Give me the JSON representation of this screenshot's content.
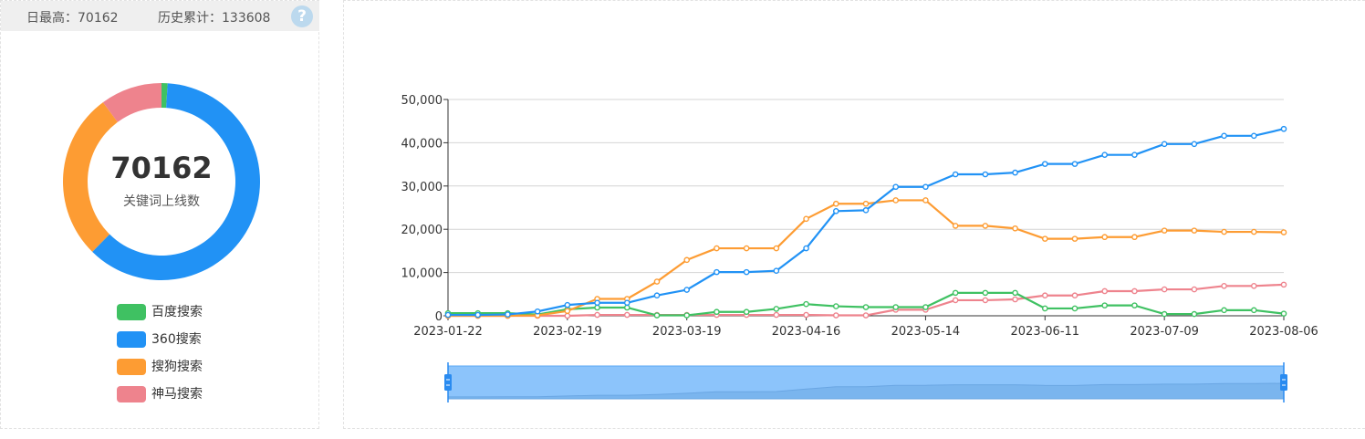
{
  "stats": {
    "daily_max_label": "日最高：",
    "daily_max_value": "70162",
    "total_label": "历史累计：",
    "total_value": "133608",
    "help_icon": "help-icon"
  },
  "donut": {
    "center_value": "70162",
    "center_label": "关键词上线数"
  },
  "legend": [
    {
      "label": "百度搜索",
      "color": "#3fc162"
    },
    {
      "label": "360搜索",
      "color": "#2192f5"
    },
    {
      "label": "搜狗搜索",
      "color": "#fd9c33"
    },
    {
      "label": "神马搜索",
      "color": "#ee838d"
    }
  ],
  "chart_data": [
    {
      "type": "pie",
      "categories": [
        "百度搜索",
        "360搜索",
        "搜狗搜索",
        "神马搜索"
      ],
      "values": [
        700,
        43100,
        19300,
        7100
      ],
      "colors": [
        "#3fc162",
        "#2192f5",
        "#fd9c33",
        "#ee838d"
      ],
      "total": 70162
    },
    {
      "type": "line",
      "x": [
        "2023-01-22",
        "2023-01-29",
        "2023-02-05",
        "2023-02-12",
        "2023-02-19",
        "2023-02-26",
        "2023-03-05",
        "2023-03-12",
        "2023-03-19",
        "2023-03-26",
        "2023-04-02",
        "2023-04-09",
        "2023-04-16",
        "2023-04-23",
        "2023-04-30",
        "2023-05-07",
        "2023-05-14",
        "2023-05-21",
        "2023-05-28",
        "2023-06-04",
        "2023-06-11",
        "2023-06-18",
        "2023-06-25",
        "2023-07-02",
        "2023-07-09",
        "2023-07-16",
        "2023-07-23",
        "2023-07-30",
        "2023-08-06"
      ],
      "x_tick_labels": [
        "2023-01-22",
        "2023-02-19",
        "2023-03-19",
        "2023-04-16",
        "2023-05-14",
        "2023-06-11",
        "2023-07-09",
        "2023-08-06"
      ],
      "series": [
        {
          "name": "百度搜索",
          "color": "#3fc162",
          "values": [
            600,
            600,
            600,
            300,
            1500,
            1900,
            1900,
            100,
            100,
            900,
            900,
            1600,
            2700,
            2200,
            2000,
            2000,
            2000,
            5300,
            5300,
            5300,
            1700,
            1700,
            2400,
            2400,
            400,
            400,
            1300,
            1300,
            500
          ]
        },
        {
          "name": "360搜索",
          "color": "#2192f5",
          "values": [
            200,
            200,
            300,
            1000,
            2500,
            3000,
            3000,
            4700,
            6000,
            10100,
            10100,
            10400,
            15600,
            24200,
            24400,
            29800,
            29800,
            32700,
            32700,
            33100,
            35100,
            35100,
            37200,
            37200,
            39700,
            39700,
            41600,
            41600,
            43200
          ]
        },
        {
          "name": "搜狗搜索",
          "color": "#fd9c33",
          "values": [
            0,
            0,
            0,
            100,
            1100,
            3900,
            3900,
            7900,
            12900,
            15600,
            15600,
            15600,
            22400,
            25900,
            25900,
            26700,
            26700,
            20800,
            20800,
            20200,
            17800,
            17800,
            18200,
            18200,
            19700,
            19700,
            19400,
            19400,
            19300
          ]
        },
        {
          "name": "神马搜索",
          "color": "#ee838d",
          "values": [
            0,
            0,
            0,
            0,
            0,
            200,
            200,
            200,
            200,
            200,
            200,
            200,
            200,
            100,
            100,
            1400,
            1400,
            3600,
            3600,
            3800,
            4700,
            4700,
            5700,
            5700,
            6100,
            6100,
            6900,
            6900,
            7200
          ]
        }
      ],
      "ylim": [
        0,
        50000
      ],
      "y_ticks": [
        "0",
        "10,000",
        "20,000",
        "30,000",
        "40,000",
        "50,000"
      ],
      "grid": true,
      "datazoom": {
        "start": "2023-01-22",
        "end": "2023-08-06"
      }
    }
  ]
}
